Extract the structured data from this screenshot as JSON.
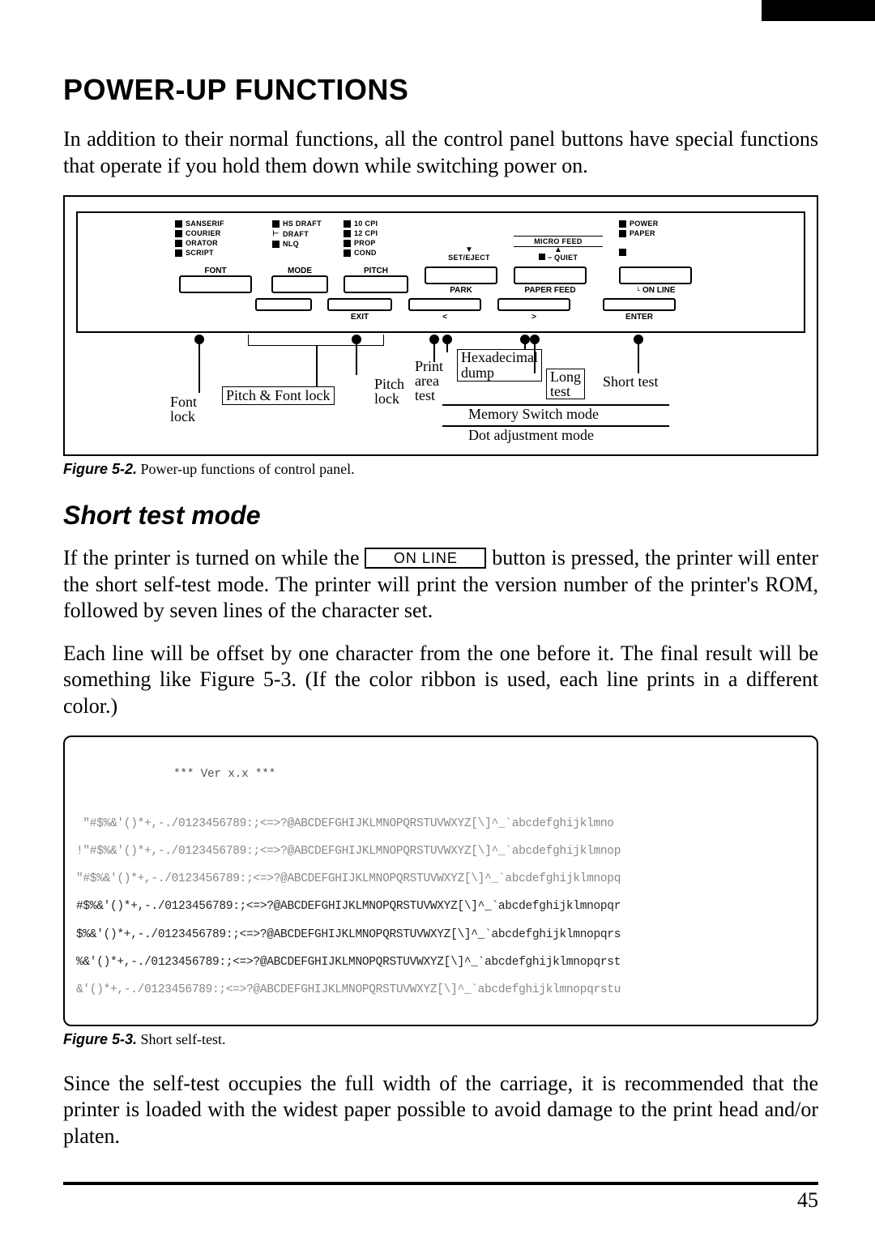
{
  "page": {
    "title": "POWER-UP FUNCTIONS",
    "intro": "In addition to their normal functions, all the control panel buttons have special functions that operate if you hold them down while switching power on.",
    "page_number": "45"
  },
  "figure52": {
    "caption_label": "Figure 5-2.",
    "caption_text": " Power-up functions of control panel.",
    "cols": {
      "font": {
        "leds": [
          "SANSERIF",
          "COURIER",
          "ORATOR",
          "SCRIPT"
        ],
        "header": "FONT"
      },
      "mode": {
        "leds_top": "HS DRAFT",
        "leds_mid1": "DRAFT",
        "leds_mid": "NLQ",
        "header": "MODE"
      },
      "pitch": {
        "leds": [
          "10 CPI",
          "12 CPI",
          "PROP",
          "COND"
        ],
        "header": "PITCH"
      },
      "seteject": {
        "top": "SET/EJECT",
        "under": "PARK",
        "micro": "MICRO FEED",
        "arrow": "▼"
      },
      "quiet": {
        "top": "− QUIET",
        "under": "PAPER FEED",
        "arrow": "▲"
      },
      "online": {
        "top": "",
        "under": "ON LINE",
        "leds": [
          "POWER",
          "PAPER"
        ]
      }
    },
    "second_row_labels": {
      "exit": "EXIT",
      "lt": "<",
      "gt": ">",
      "enter": "ENTER"
    },
    "callouts": {
      "font_lock": "Font\nlock",
      "pitch_font_lock": "Pitch & Font lock",
      "pitch_lock": "Pitch\nlock",
      "print_area": "Print\narea\ntest",
      "hex": "Hexadecimal\ndump",
      "long": "Long\ntest",
      "short": "Short test",
      "mem": "Memory Switch mode",
      "dot": "Dot adjustment mode"
    }
  },
  "short_test": {
    "heading": "Short test mode",
    "p1_a": "If the printer is turned on while the ",
    "button": "ON LINE",
    "p1_b": " button is pressed, the printer will enter the short self-test mode. The printer will print the version number of the printer's ROM, followed by seven lines of the character set.",
    "p2": "Each line will be offset by one character from the one before it. The final result will be something like Figure 5-3. (If the color ribbon is used, each line prints in a different color.)"
  },
  "figure53": {
    "caption_label": "Figure 5-3.",
    "caption_text": " Short self-test.",
    "version_line": "*** Ver x.x ***",
    "lines": [
      " \"#$%&'()*+,-./0123456789:;<=>?@ABCDEFGHIJKLMNOPQRSTUVWXYZ[\\]^_`abcdefghijklmno",
      "!\"#$%&'()*+,-./0123456789:;<=>?@ABCDEFGHIJKLMNOPQRSTUVWXYZ[\\]^_`abcdefghijklmnop",
      "\"#$%&'()*+,-./0123456789:;<=>?@ABCDEFGHIJKLMNOPQRSTUVWXYZ[\\]^_`abcdefghijklmnopq",
      "#$%&'()*+,-./0123456789:;<=>?@ABCDEFGHIJKLMNOPQRSTUVWXYZ[\\]^_`abcdefghijklmnopqr",
      "$%&'()*+,-./0123456789:;<=>?@ABCDEFGHIJKLMNOPQRSTUVWXYZ[\\]^_`abcdefghijklmnopqrs",
      "%&'()*+,-./0123456789:;<=>?@ABCDEFGHIJKLMNOPQRSTUVWXYZ[\\]^_`abcdefghijklmnopqrst",
      "&'()*+,-./0123456789:;<=>?@ABCDEFGHIJKLMNOPQRSTUVWXYZ[\\]^_`abcdefghijklmnopqrstu"
    ]
  },
  "closing": "Since the self-test occupies the full width of the carriage, it is recommended that the printer is loaded with the widest paper possible to avoid damage to the print head and/or platen."
}
